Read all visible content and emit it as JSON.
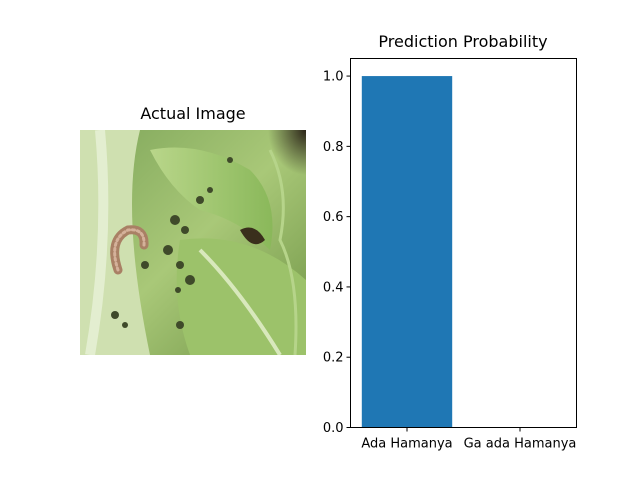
{
  "image_panel": {
    "title": "Actual Image",
    "image_icon": "cabbage-leaf-with-caterpillar-and-aphids-photo"
  },
  "chart_data": {
    "type": "bar",
    "title": "Prediction Probability",
    "categories": [
      "Ada Hamanya",
      "Ga ada Hamanya"
    ],
    "values": [
      1.0,
      0.0
    ],
    "xlabel": "",
    "ylabel": "",
    "ylim": [
      0,
      1.05
    ],
    "yticks": [
      "0.0",
      "0.2",
      "0.4",
      "0.6",
      "0.8",
      "1.0"
    ],
    "bar_color": "#1f77b4",
    "grid": false
  }
}
